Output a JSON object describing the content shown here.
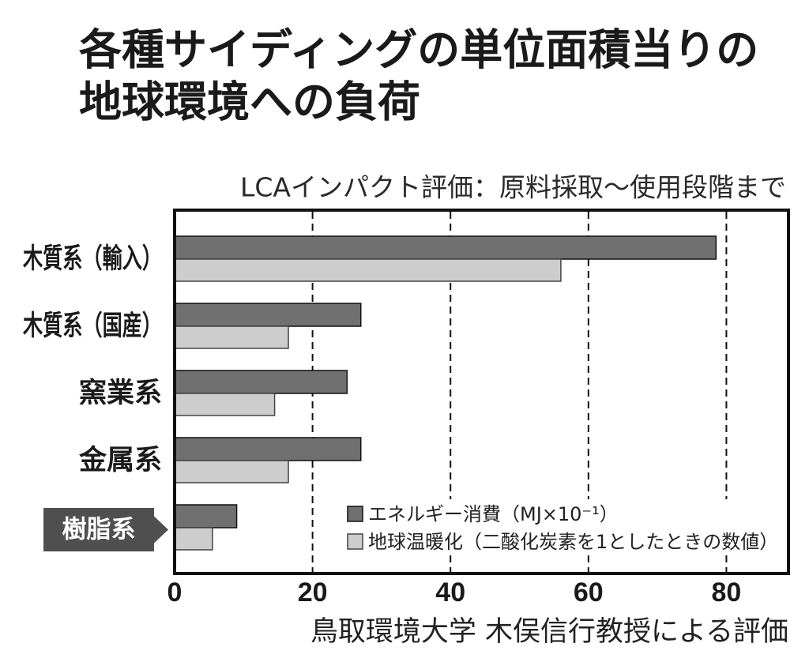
{
  "chart_data": {
    "type": "bar",
    "orientation": "horizontal",
    "title_lines": [
      "各種サイディングの単位面積当りの",
      "地球環境への負荷"
    ],
    "subtitle": "LCAインパクト評価：原料採取～使用段階まで",
    "categories": [
      "木質系（輸入）",
      "木質系（国産）",
      "窯業系",
      "金属系",
      "樹脂系"
    ],
    "highlight_index": 4,
    "highlight_color": "#4f4f4f",
    "series": [
      {
        "name": "エネルギー消費（MJ×10⁻¹）",
        "color": "#707070",
        "values": [
          78.5,
          27,
          25,
          27,
          9
        ]
      },
      {
        "name": "地球温暖化（二酸化炭素を1としたときの数値）",
        "color": "#cdcdcd",
        "values": [
          56,
          16.5,
          14.5,
          16.5,
          5.5
        ]
      }
    ],
    "xlim": [
      0,
      89
    ],
    "xticks": [
      0,
      20,
      40,
      60,
      80
    ],
    "grid": true,
    "legend": "bottom-right",
    "credit": "鳥取環境大学 木俣信行教授による評価"
  }
}
